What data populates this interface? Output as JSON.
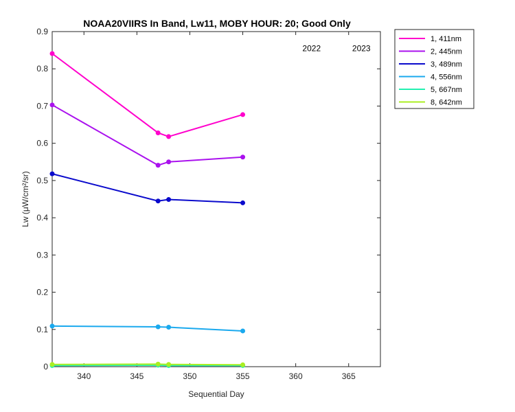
{
  "chart_data": {
    "type": "line",
    "title": "NOAA20VIIRS In Band,  Lw11, MOBY HOUR: 20;  Good Only",
    "xlabel": "Sequential Day",
    "ylabel": "Lw (μW/cm²/sr)",
    "xlim": [
      337,
      368
    ],
    "ylim": [
      0,
      0.9
    ],
    "xticks": [
      340,
      345,
      350,
      355,
      360,
      365
    ],
    "yticks": [
      0,
      0.1,
      0.2,
      0.3,
      0.4,
      0.5,
      0.6,
      0.7,
      0.8,
      0.9
    ],
    "xtick_labels": [
      "340",
      "345",
      "350",
      "355",
      "360",
      "365"
    ],
    "ytick_labels": [
      "0",
      "0.1",
      "0.2",
      "0.3",
      "0.4",
      "0.5",
      "0.6",
      "0.7",
      "0.8",
      "0.9"
    ],
    "grid": false,
    "legend_position": "outside-top-right",
    "annotations": [
      {
        "text": "2022",
        "x": 361.5,
        "y": 0.855
      },
      {
        "text": "2023",
        "x": 366.2,
        "y": 0.855
      }
    ],
    "x": [
      337,
      347,
      348,
      355
    ],
    "series": [
      {
        "name": "1, 411nm",
        "color": "#ff00cc",
        "values": [
          0.841,
          0.628,
          0.618,
          0.677
        ]
      },
      {
        "name": "2, 445nm",
        "color": "#aa11ee",
        "values": [
          0.703,
          0.541,
          0.55,
          0.563
        ]
      },
      {
        "name": "3, 489nm",
        "color": "#0a0acc",
        "values": [
          0.518,
          0.445,
          0.449,
          0.44
        ]
      },
      {
        "name": "4, 556nm",
        "color": "#1aa9ee",
        "values": [
          0.109,
          0.107,
          0.106,
          0.096
        ]
      },
      {
        "name": "5, 667nm",
        "color": "#22f0b0",
        "values": [
          0.003,
          0.004,
          0.003,
          0.003
        ]
      },
      {
        "name": "8, 642nm",
        "color": "#aaee22",
        "values": [
          0.006,
          0.007,
          0.006,
          0.005
        ]
      }
    ]
  }
}
